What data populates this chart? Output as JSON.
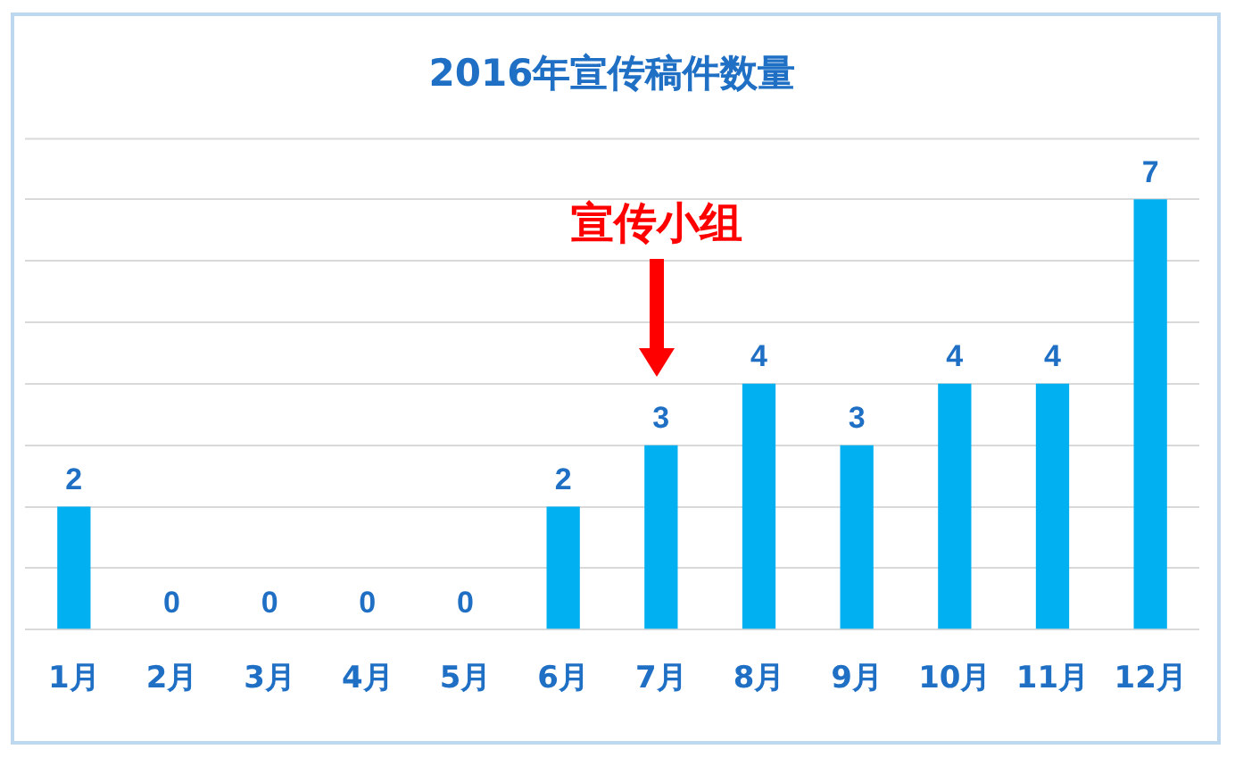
{
  "chart_data": {
    "type": "bar",
    "title": "2016年宣传稿件数量",
    "categories": [
      "1月",
      "2月",
      "3月",
      "4月",
      "5月",
      "6月",
      "7月",
      "8月",
      "9月",
      "10月",
      "11月",
      "12月"
    ],
    "values": [
      2,
      0,
      0,
      0,
      0,
      2,
      3,
      4,
      3,
      4,
      4,
      7
    ],
    "color": "#00b0f0",
    "ylim": [
      0,
      8
    ],
    "yticks": [
      {
        "value": 0,
        "label": null
      },
      {
        "value": 1,
        "label": null
      },
      {
        "value": 2,
        "label": null
      },
      {
        "value": 3,
        "label": null
      },
      {
        "value": 4,
        "label": null
      },
      {
        "value": 5,
        "label": null
      },
      {
        "value": 6,
        "label": null
      },
      {
        "value": 7,
        "label": null
      }
    ],
    "grid": "y",
    "tick_labels": "x",
    "data_labels": true,
    "legend": false,
    "annotations": [
      "宣传小组"
    ]
  }
}
